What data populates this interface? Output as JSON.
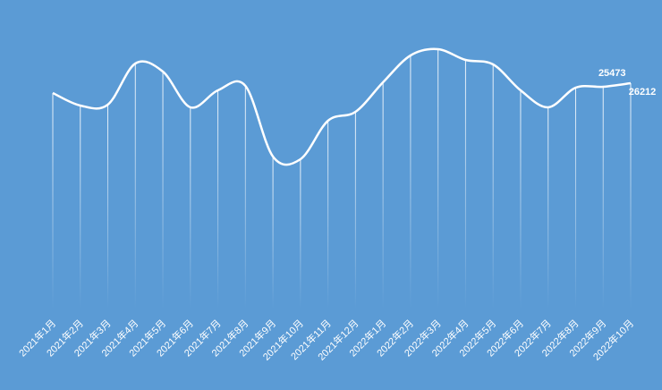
{
  "chart_data": {
    "type": "line",
    "categories": [
      "2021年1月",
      "2021年2月",
      "2021年3月",
      "2021年4月",
      "2021年5月",
      "2021年6月",
      "2021年7月",
      "2021年8月",
      "2021年9月",
      "2021年10月",
      "2021年11月",
      "2021年12月",
      "2022年1月",
      "2022年2月",
      "2022年3月",
      "2022年4月",
      "2022年5月",
      "2022年6月",
      "2022年7月",
      "2022年8月",
      "2022年9月",
      "2022年10月"
    ],
    "values": [
      24178,
      21588,
      21773,
      30283,
      28618,
      21218,
      24733,
      25658,
      11043,
      10488,
      18443,
      20293,
      26398,
      31948,
      33243,
      31023,
      30098,
      24733,
      21218,
      25288,
      25473,
      26212
    ],
    "color": "#ffffff"
  }
}
